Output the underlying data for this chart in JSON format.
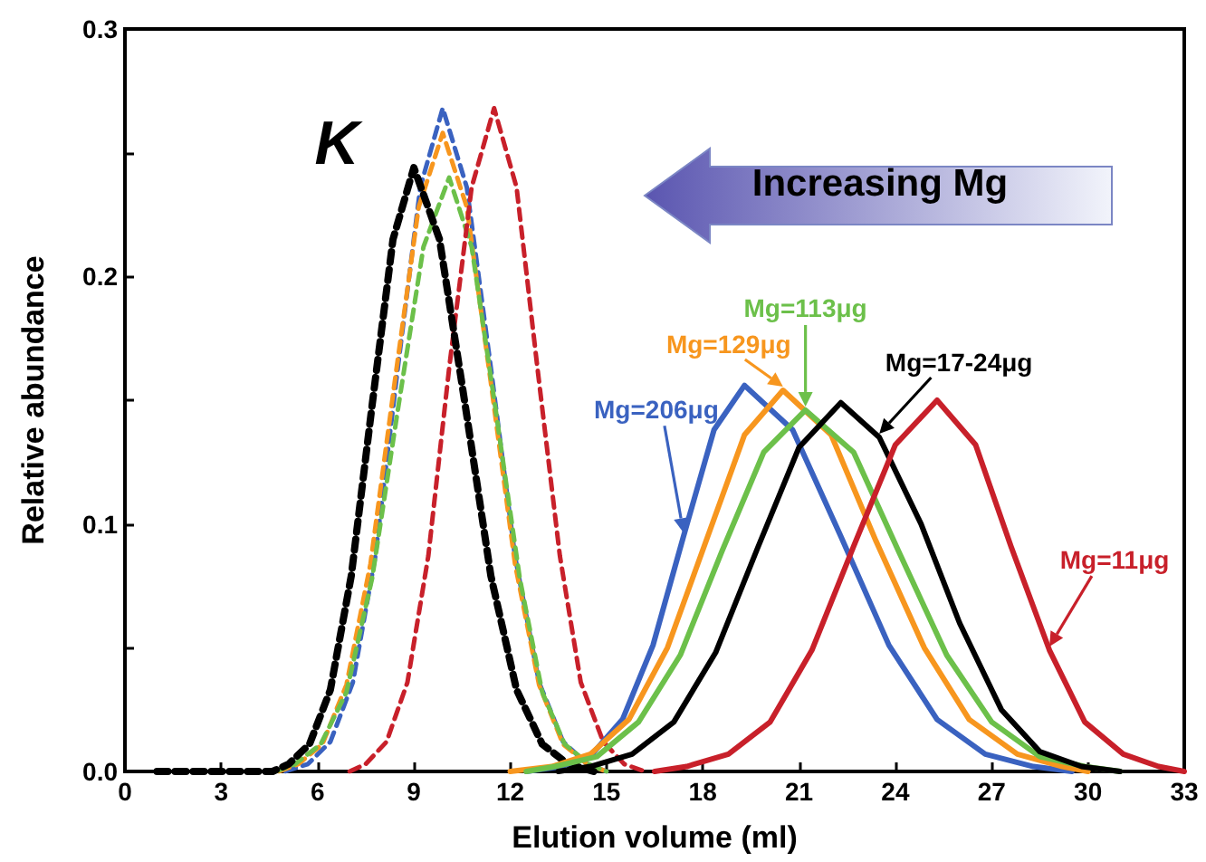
{
  "chart_data": {
    "type": "line",
    "xlabel": "Elution volume (ml)",
    "ylabel": "Relative abundance",
    "xlim": [
      0,
      33
    ],
    "xticks": [
      0,
      3,
      6,
      9,
      12,
      15,
      18,
      21,
      24,
      27,
      30,
      33
    ],
    "ylim": [
      0,
      0.3
    ],
    "yticks": [
      {
        "value": 0,
        "label": "0.0"
      },
      {
        "value": 0.05,
        "label": null
      },
      {
        "value": 0.1,
        "label": "0.1"
      },
      {
        "value": 0.15,
        "label": null
      },
      {
        "value": 0.2,
        "label": "0.2"
      },
      {
        "value": 0.25,
        "label": null
      },
      {
        "value": 0.3,
        "label": "0.3"
      }
    ],
    "grid": false,
    "legend": false,
    "marker": "none",
    "annotations": [
      "K",
      "Increasing Mg"
    ],
    "series": [
      {
        "name": "Mg=206μg",
        "color": "#3a62c0",
        "line_style": "solid",
        "x": [
          12.5,
          13.6,
          14.55,
          15.5,
          16.45,
          17.4,
          18.35,
          19.3,
          20.8,
          22.3,
          23.8,
          25.3,
          26.8,
          28.3,
          29.5
        ],
        "values": [
          0,
          0.002,
          0.007,
          0.021,
          0.051,
          0.095,
          0.138,
          0.156,
          0.138,
          0.095,
          0.051,
          0.021,
          0.007,
          0.002,
          0
        ]
      },
      {
        "name": "Mg=129μg",
        "color": "#f7961e",
        "line_style": "solid",
        "x": [
          12.0,
          13.3,
          14.5,
          15.7,
          16.9,
          18.1,
          19.3,
          20.5,
          22.0,
          23.4,
          24.9,
          26.3,
          27.8,
          29.2,
          30.0
        ],
        "values": [
          0,
          0.002,
          0.007,
          0.021,
          0.05,
          0.093,
          0.136,
          0.154,
          0.136,
          0.093,
          0.05,
          0.021,
          0.007,
          0.002,
          0
        ]
      },
      {
        "name": "Mg=113μg",
        "color": "#6cc04a",
        "line_style": "solid",
        "x": [
          12.5,
          13.4,
          14.7,
          16.0,
          17.3,
          18.6,
          19.9,
          21.2,
          22.7,
          24.1,
          25.6,
          27.0,
          28.5,
          29.9,
          31.0
        ],
        "values": [
          0,
          0.002,
          0.006,
          0.02,
          0.047,
          0.089,
          0.129,
          0.146,
          0.129,
          0.089,
          0.047,
          0.02,
          0.006,
          0.002,
          0
        ]
      },
      {
        "name": "Mg=17-24μg",
        "color": "#000000",
        "line_style": "solid",
        "x": [
          13.5,
          14.5,
          15.8,
          17.1,
          18.4,
          19.7,
          21.0,
          22.3,
          23.5,
          24.8,
          26.0,
          27.3,
          28.5,
          29.8,
          31.0
        ],
        "values": [
          0,
          0.002,
          0.007,
          0.02,
          0.048,
          0.09,
          0.131,
          0.149,
          0.135,
          0.1,
          0.06,
          0.025,
          0.008,
          0.002,
          0
        ]
      },
      {
        "name": "Mg=11μg",
        "color": "#c8202a",
        "line_style": "solid",
        "x": [
          16.5,
          17.5,
          18.8,
          20.1,
          21.4,
          22.7,
          24.0,
          25.3,
          26.5,
          27.6,
          28.8,
          29.9,
          31.1,
          32.2,
          33.0
        ],
        "values": [
          0,
          0.002,
          0.007,
          0.02,
          0.049,
          0.091,
          0.132,
          0.15,
          0.132,
          0.091,
          0.049,
          0.02,
          0.007,
          0.002,
          0
        ]
      },
      {
        "color": "#3a62c0",
        "line_style": "dashed",
        "x": [
          5.0,
          5.7,
          6.4,
          7.1,
          7.8,
          8.5,
          9.2,
          9.9,
          10.65,
          11.4,
          12.15,
          12.9,
          13.65,
          14.4,
          15.0
        ],
        "values": [
          0,
          0.003,
          0.012,
          0.036,
          0.087,
          0.163,
          0.236,
          0.268,
          0.236,
          0.163,
          0.087,
          0.036,
          0.012,
          0.003,
          0
        ]
      },
      {
        "color": "#f7961e",
        "line_style": "dashed",
        "x": [
          4.8,
          5.4,
          6.15,
          6.9,
          7.65,
          8.4,
          9.15,
          9.9,
          10.65,
          11.4,
          12.15,
          12.9,
          13.65,
          14.4,
          15.0
        ],
        "values": [
          0,
          0.003,
          0.011,
          0.035,
          0.084,
          0.157,
          0.228,
          0.258,
          0.228,
          0.157,
          0.084,
          0.035,
          0.011,
          0.003,
          0
        ]
      },
      {
        "color": "#6cc04a",
        "line_style": "dashed",
        "x": [
          4.7,
          5.3,
          6.1,
          6.9,
          7.7,
          8.5,
          9.3,
          10.1,
          10.8,
          11.55,
          12.3,
          13.0,
          13.7,
          14.45,
          15.0
        ],
        "values": [
          0,
          0.003,
          0.011,
          0.032,
          0.078,
          0.146,
          0.212,
          0.24,
          0.212,
          0.146,
          0.078,
          0.032,
          0.011,
          0.003,
          0
        ]
      },
      {
        "color": "#c8202a",
        "line_style": "dashed",
        "x": [
          7.0,
          7.5,
          8.15,
          8.8,
          9.45,
          10.1,
          10.8,
          11.5,
          12.2,
          12.85,
          13.55,
          14.2,
          14.9,
          15.55,
          16.2
        ],
        "values": [
          0,
          0.003,
          0.012,
          0.036,
          0.087,
          0.163,
          0.236,
          0.268,
          0.236,
          0.163,
          0.087,
          0.036,
          0.012,
          0.003,
          0
        ]
      },
      {
        "color": "#000000",
        "line_style": "dashed",
        "x": [
          1.0,
          4.6,
          5.1,
          5.75,
          6.4,
          7.05,
          7.7,
          8.35,
          9.0,
          9.8,
          10.6,
          11.4,
          12.2,
          13.0,
          13.8,
          14.6
        ],
        "values": [
          0,
          0,
          0.003,
          0.011,
          0.033,
          0.079,
          0.148,
          0.215,
          0.244,
          0.215,
          0.148,
          0.079,
          0.033,
          0.011,
          0.003,
          0
        ]
      }
    ]
  }
}
